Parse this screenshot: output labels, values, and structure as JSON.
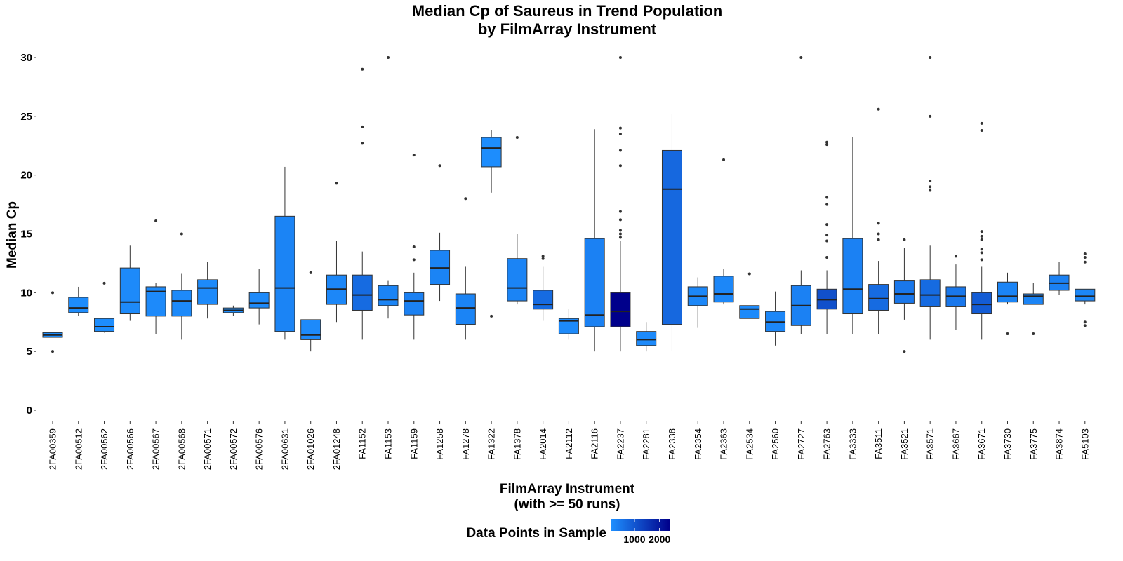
{
  "chart_data": {
    "type": "boxplot",
    "title": "Median Cp of Saureus in Trend Population",
    "subtitle": "by FilmArray Instrument",
    "xlabel": "FilmArray Instrument",
    "xlabel_line2": "(with >= 50 runs)",
    "ylabel": "Median Cp",
    "ylim": [
      0,
      30
    ],
    "yticks": [
      0,
      5,
      10,
      15,
      20,
      25,
      30
    ],
    "grid": false,
    "legend": {
      "title": "Data Points in Sample",
      "placement": "bottom",
      "range": [
        50,
        2400
      ],
      "ticks": [
        1000,
        2000
      ],
      "tick_labels": [
        "1000",
        "2000"
      ],
      "color_low": "#1E90FF",
      "color_high": "#00008B"
    },
    "categories": [
      "2FA00359",
      "2FA00512",
      "2FA00562",
      "2FA00566",
      "2FA00567",
      "2FA00568",
      "2FA00571",
      "2FA00572",
      "2FA00576",
      "2FA00631",
      "2FA01026",
      "2FA01248",
      "FA1152",
      "FA1153",
      "FA1159",
      "FA1258",
      "FA1278",
      "FA1322",
      "FA1378",
      "FA2014",
      "FA2112",
      "FA2116",
      "FA2237",
      "FA2281",
      "FA2338",
      "FA2354",
      "FA2363",
      "FA2534",
      "FA2560",
      "FA2727",
      "FA2763",
      "FA3333",
      "FA3511",
      "FA3521",
      "FA3571",
      "FA3667",
      "FA3671",
      "FA3730",
      "FA3775",
      "FA3874",
      "FA5103"
    ],
    "boxes": [
      {
        "whisker_low": 6.2,
        "q1": 6.2,
        "median": 6.4,
        "q3": 6.6,
        "whisker_high": 6.6,
        "outliers": [
          5.0,
          10.0
        ],
        "n": 100
      },
      {
        "whisker_low": 8.0,
        "q1": 8.3,
        "median": 8.7,
        "q3": 9.6,
        "whisker_high": 10.5,
        "outliers": [],
        "n": 120
      },
      {
        "whisker_low": 6.6,
        "q1": 6.7,
        "median": 7.1,
        "q3": 7.8,
        "whisker_high": 7.8,
        "outliers": [
          10.8
        ],
        "n": 100
      },
      {
        "whisker_low": 7.6,
        "q1": 8.2,
        "median": 9.2,
        "q3": 12.1,
        "whisker_high": 14.0,
        "outliers": [],
        "n": 150
      },
      {
        "whisker_low": 6.5,
        "q1": 8.0,
        "median": 10.1,
        "q3": 10.5,
        "whisker_high": 10.8,
        "outliers": [
          16.1
        ],
        "n": 150
      },
      {
        "whisker_low": 6.0,
        "q1": 8.0,
        "median": 9.3,
        "q3": 10.2,
        "whisker_high": 11.6,
        "outliers": [
          15.0
        ],
        "n": 150
      },
      {
        "whisker_low": 7.8,
        "q1": 9.0,
        "median": 10.4,
        "q3": 11.1,
        "whisker_high": 12.6,
        "outliers": [],
        "n": 150
      },
      {
        "whisker_low": 8.0,
        "q1": 8.3,
        "median": 8.5,
        "q3": 8.7,
        "whisker_high": 8.9,
        "outliers": [],
        "n": 100
      },
      {
        "whisker_low": 7.3,
        "q1": 8.7,
        "median": 9.1,
        "q3": 10.0,
        "whisker_high": 12.0,
        "outliers": [],
        "n": 150
      },
      {
        "whisker_low": 6.0,
        "q1": 6.7,
        "median": 10.4,
        "q3": 16.5,
        "whisker_high": 20.7,
        "outliers": [],
        "n": 250
      },
      {
        "whisker_low": 5.0,
        "q1": 6.0,
        "median": 6.4,
        "q3": 7.7,
        "whisker_high": 7.7,
        "outliers": [
          11.7
        ],
        "n": 150
      },
      {
        "whisker_low": 7.5,
        "q1": 9.0,
        "median": 10.3,
        "q3": 11.5,
        "whisker_high": 14.4,
        "outliers": [
          19.3
        ],
        "n": 200
      },
      {
        "whisker_low": 6.0,
        "q1": 8.5,
        "median": 9.8,
        "q3": 11.5,
        "whisker_high": 13.5,
        "outliers": [
          22.7,
          24.1,
          29.0
        ],
        "n": 650
      },
      {
        "whisker_low": 7.8,
        "q1": 8.9,
        "median": 9.4,
        "q3": 10.6,
        "whisker_high": 11.0,
        "outliers": [
          30.0
        ],
        "n": 250
      },
      {
        "whisker_low": 6.0,
        "q1": 8.1,
        "median": 9.3,
        "q3": 10.0,
        "whisker_high": 11.7,
        "outliers": [
          12.8,
          13.9,
          21.7
        ],
        "n": 300
      },
      {
        "whisker_low": 9.3,
        "q1": 10.7,
        "median": 12.1,
        "q3": 13.6,
        "whisker_high": 15.1,
        "outliers": [
          20.8
        ],
        "n": 250
      },
      {
        "whisker_low": 6.0,
        "q1": 7.3,
        "median": 8.7,
        "q3": 9.9,
        "whisker_high": 12.2,
        "outliers": [
          18.0
        ],
        "n": 250
      },
      {
        "whisker_low": 18.5,
        "q1": 20.7,
        "median": 22.3,
        "q3": 23.2,
        "whisker_high": 23.8,
        "outliers": [
          8.0
        ],
        "n": 100
      },
      {
        "whisker_low": 9.0,
        "q1": 9.3,
        "median": 10.4,
        "q3": 12.9,
        "whisker_high": 15.0,
        "outliers": [
          23.2
        ],
        "n": 250
      },
      {
        "whisker_low": 7.6,
        "q1": 8.6,
        "median": 9.0,
        "q3": 10.2,
        "whisker_high": 12.2,
        "outliers": [
          12.9,
          13.1
        ],
        "n": 650
      },
      {
        "whisker_low": 6.0,
        "q1": 6.5,
        "median": 7.6,
        "q3": 7.8,
        "whisker_high": 8.6,
        "outliers": [],
        "n": 150
      },
      {
        "whisker_low": 5.0,
        "q1": 7.1,
        "median": 8.1,
        "q3": 14.6,
        "whisker_high": 23.9,
        "outliers": [],
        "n": 300
      },
      {
        "whisker_low": 5.0,
        "q1": 7.1,
        "median": 8.4,
        "q3": 10.0,
        "whisker_high": 14.4,
        "outliers": [
          14.7,
          15.0,
          15.3,
          16.2,
          16.9,
          20.8,
          22.1,
          23.5,
          24.0,
          30.0
        ],
        "n": 2400
      },
      {
        "whisker_low": 5.0,
        "q1": 5.5,
        "median": 6.0,
        "q3": 6.7,
        "whisker_high": 7.5,
        "outliers": [],
        "n": 150
      },
      {
        "whisker_low": 5.0,
        "q1": 7.3,
        "median": 18.8,
        "q3": 22.1,
        "whisker_high": 25.2,
        "outliers": [],
        "n": 700
      },
      {
        "whisker_low": 7.0,
        "q1": 8.9,
        "median": 9.7,
        "q3": 10.5,
        "whisker_high": 11.3,
        "outliers": [],
        "n": 200
      },
      {
        "whisker_low": 9.0,
        "q1": 9.2,
        "median": 9.9,
        "q3": 11.4,
        "whisker_high": 12.0,
        "outliers": [
          21.3
        ],
        "n": 200
      },
      {
        "whisker_low": 7.8,
        "q1": 7.8,
        "median": 8.6,
        "q3": 8.9,
        "whisker_high": 8.9,
        "outliers": [
          11.6
        ],
        "n": 150
      },
      {
        "whisker_low": 5.5,
        "q1": 6.7,
        "median": 7.5,
        "q3": 8.4,
        "whisker_high": 10.1,
        "outliers": [],
        "n": 200
      },
      {
        "whisker_low": 6.5,
        "q1": 7.2,
        "median": 8.9,
        "q3": 10.6,
        "whisker_high": 11.9,
        "outliers": [
          30.0
        ],
        "n": 300
      },
      {
        "whisker_low": 6.5,
        "q1": 8.6,
        "median": 9.4,
        "q3": 10.3,
        "whisker_high": 11.9,
        "outliers": [
          13.0,
          14.4,
          14.9,
          15.8,
          17.5,
          18.1,
          22.6,
          22.8
        ],
        "n": 1100
      },
      {
        "whisker_low": 6.5,
        "q1": 8.2,
        "median": 10.3,
        "q3": 14.6,
        "whisker_high": 23.2,
        "outliers": [],
        "n": 300
      },
      {
        "whisker_low": 6.5,
        "q1": 8.5,
        "median": 9.5,
        "q3": 10.7,
        "whisker_high": 12.7,
        "outliers": [
          14.5,
          15.0,
          15.9,
          25.6
        ],
        "n": 650
      },
      {
        "whisker_low": 7.7,
        "q1": 9.1,
        "median": 9.9,
        "q3": 11.0,
        "whisker_high": 13.8,
        "outliers": [
          5.0,
          14.5
        ],
        "n": 450
      },
      {
        "whisker_low": 6.0,
        "q1": 8.8,
        "median": 9.8,
        "q3": 11.1,
        "whisker_high": 14.0,
        "outliers": [
          18.7,
          19.0,
          19.5,
          25.0,
          30.0
        ],
        "n": 650
      },
      {
        "whisker_low": 6.8,
        "q1": 8.8,
        "median": 9.7,
        "q3": 10.5,
        "whisker_high": 12.4,
        "outliers": [
          13.1
        ],
        "n": 450
      },
      {
        "whisker_low": 6.0,
        "q1": 8.2,
        "median": 9.0,
        "q3": 10.0,
        "whisker_high": 12.2,
        "outliers": [
          12.8,
          13.4,
          13.7,
          14.5,
          14.8,
          15.2,
          23.8,
          24.4
        ],
        "n": 900
      },
      {
        "whisker_low": 9.0,
        "q1": 9.2,
        "median": 9.7,
        "q3": 10.9,
        "whisker_high": 11.7,
        "outliers": [
          6.5
        ],
        "n": 250
      },
      {
        "whisker_low": 9.0,
        "q1": 9.0,
        "median": 9.7,
        "q3": 9.9,
        "whisker_high": 10.8,
        "outliers": [
          6.5
        ],
        "n": 250
      },
      {
        "whisker_low": 9.8,
        "q1": 10.2,
        "median": 10.8,
        "q3": 11.5,
        "whisker_high": 12.6,
        "outliers": [],
        "n": 300
      },
      {
        "whisker_low": 9.0,
        "q1": 9.3,
        "median": 9.7,
        "q3": 10.3,
        "whisker_high": 10.3,
        "outliers": [
          7.2,
          7.5,
          12.6,
          13.0,
          13.3
        ],
        "n": 200
      }
    ]
  }
}
